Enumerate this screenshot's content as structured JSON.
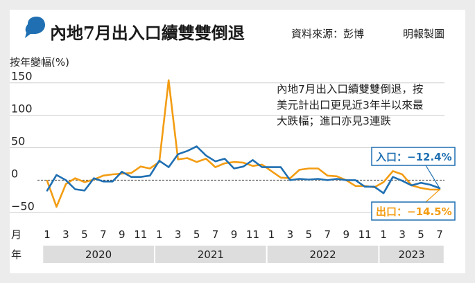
{
  "header": {
    "title": "內地7月出入口續雙雙倒退",
    "source": "資料來源：彭博",
    "publisher": "明報製圖"
  },
  "colors": {
    "imports": "#1f6fb2",
    "exports": "#f39c12",
    "badge": "#1f6fb2",
    "grid": "#cfcfcf",
    "zero": "#444444",
    "year_band": "#dddddd"
  },
  "chart_data": {
    "type": "line",
    "ylabel": "按年變幅(%)",
    "ylim": [
      -55,
      155
    ],
    "yticks": [
      150,
      100,
      50,
      0,
      -50
    ],
    "ytick_labels": [
      "150",
      "100",
      "50",
      "0",
      "−50"
    ],
    "month_row_label": "月",
    "year_row_label": "年",
    "x_month_ticks": [
      {
        "i": 0,
        "label": "1"
      },
      {
        "i": 2,
        "label": "3"
      },
      {
        "i": 4,
        "label": "5"
      },
      {
        "i": 6,
        "label": "7"
      },
      {
        "i": 8,
        "label": "9"
      },
      {
        "i": 10,
        "label": "11"
      },
      {
        "i": 12,
        "label": "1"
      },
      {
        "i": 14,
        "label": "3"
      },
      {
        "i": 16,
        "label": "5"
      },
      {
        "i": 18,
        "label": "7"
      },
      {
        "i": 20,
        "label": "9"
      },
      {
        "i": 22,
        "label": "11"
      },
      {
        "i": 24,
        "label": "1"
      },
      {
        "i": 26,
        "label": "3"
      },
      {
        "i": 28,
        "label": "5"
      },
      {
        "i": 30,
        "label": "7"
      },
      {
        "i": 32,
        "label": "9"
      },
      {
        "i": 34,
        "label": "11"
      },
      {
        "i": 36,
        "label": "1"
      },
      {
        "i": 38,
        "label": "3"
      },
      {
        "i": 40,
        "label": "5"
      },
      {
        "i": 42,
        "label": "7"
      }
    ],
    "years": [
      {
        "label": "2020",
        "start": 0,
        "end": 11
      },
      {
        "label": "2021",
        "start": 12,
        "end": 23
      },
      {
        "label": "2022",
        "start": 24,
        "end": 35
      },
      {
        "label": "2023",
        "start": 36,
        "end": 42
      }
    ],
    "series": [
      {
        "name": "入口",
        "color": "#1f6fb2",
        "values": [
          -16,
          8,
          0,
          -14,
          -16,
          3,
          -2,
          -2,
          13,
          5,
          5,
          7,
          30,
          20,
          40,
          45,
          52,
          38,
          29,
          33,
          18,
          21,
          31,
          20,
          20,
          20,
          0,
          2,
          1,
          2,
          0,
          2,
          0,
          0,
          -10,
          -10,
          -20,
          5,
          -1,
          -8,
          -4,
          -7,
          -12.4
        ]
      },
      {
        "name": "出口",
        "color": "#f39c12",
        "values": [
          -1,
          -41,
          -6,
          3,
          -3,
          1,
          7,
          9,
          10,
          11,
          21,
          18,
          28,
          154,
          32,
          34,
          28,
          33,
          20,
          26,
          28,
          27,
          22,
          24,
          14,
          4,
          3,
          16,
          18,
          18,
          7,
          6,
          0,
          -9,
          -9,
          -11,
          -3,
          14,
          9,
          -8,
          -12,
          -14.5,
          -14.5
        ]
      }
    ],
    "annotation": [
      "內地7月出入口續雙雙倒退，按",
      "美元計出口更見近3年半以來最",
      "大跌幅；進口亦見3連跌"
    ],
    "value_labels": [
      {
        "series": "入口",
        "text": "入口：−12.4%"
      },
      {
        "series": "出口",
        "text": "出口：−14.5%"
      }
    ]
  }
}
